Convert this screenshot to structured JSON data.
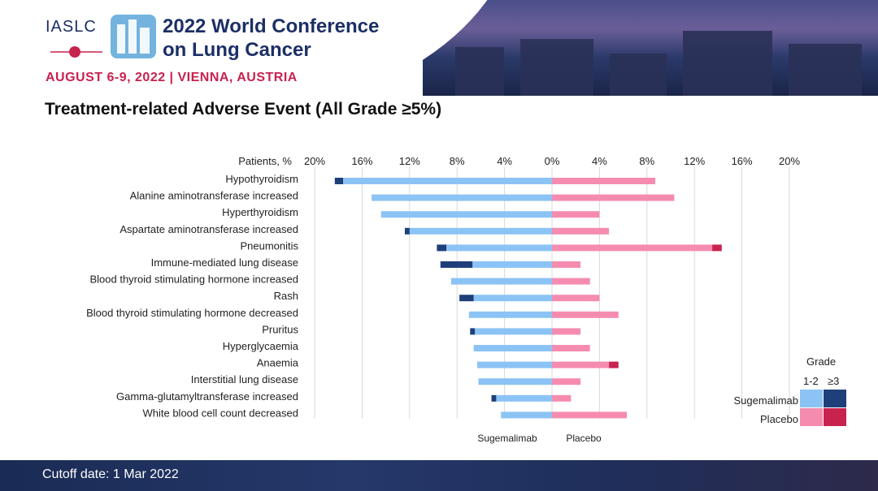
{
  "header": {
    "org": "IASLC",
    "conference_title_line1": "2022 World Conference",
    "conference_title_line2": "on Lung Cancer",
    "date_location": "AUGUST 6-9, 2022 | VIENNA, AUSTRIA"
  },
  "slide_title": "Treatment-related Adverse Event (All Grade ≥5%)",
  "footer": {
    "cutoff": "Cutoff date: 1 Mar 2022"
  },
  "legend": {
    "title": "Grade",
    "col1": "1-2",
    "col2": "≥3",
    "row1": "Sugemalimab",
    "row2": "Placebo"
  },
  "colors": {
    "sugemalimab_g12": "#8cc3f5",
    "sugemalimab_g3": "#1f3f7a",
    "placebo_g12": "#f58caf",
    "placebo_g3": "#c8224e",
    "title_navy": "#1c2f66",
    "accent_red": "#c8224e"
  },
  "chart_data": {
    "type": "bar",
    "orientation": "horizontal-butterfly",
    "ylabel": "Patients, %",
    "xlabel_left": "Sugemalimab",
    "xlabel_right": "Placebo",
    "xlim": [
      -20,
      20
    ],
    "ticks": [
      -20,
      -16,
      -12,
      -8,
      -4,
      0,
      4,
      8,
      12,
      16,
      20
    ],
    "tick_labels": [
      "20%",
      "16%",
      "12%",
      "8%",
      "4%",
      "0%",
      "4%",
      "8%",
      "12%",
      "16%",
      "20%"
    ],
    "grid": true,
    "legend_position": "bottom-right",
    "categories": [
      "Hypothyroidism",
      "Alanine aminotransferase increased",
      "Hyperthyroidism",
      "Aspartate aminotransferase increased",
      "Pneumonitis",
      "Immune-mediated lung disease",
      "Blood thyroid stimulating hormone increased",
      "Rash",
      "Blood thyroid stimulating hormone decreased",
      "Pruritus",
      "Hyperglycaemia",
      "Anaemia",
      "Interstitial lung disease",
      "Gamma-glutamyltransferase increased",
      "White blood cell count decreased"
    ],
    "series": [
      {
        "name": "Sugemalimab",
        "grade": "1-2",
        "values": [
          17.6,
          15.2,
          14.4,
          12.0,
          8.9,
          6.7,
          8.5,
          6.6,
          7.0,
          6.5,
          6.6,
          6.3,
          6.2,
          4.7,
          4.3
        ]
      },
      {
        "name": "Sugemalimab",
        "grade": "≥3",
        "values": [
          0.7,
          0,
          0,
          0.4,
          0.8,
          2.7,
          0,
          1.2,
          0,
          0.4,
          0,
          0,
          0,
          0.4,
          0
        ]
      },
      {
        "name": "Placebo",
        "grade": "1-2",
        "values": [
          8.7,
          10.3,
          4.0,
          4.8,
          13.5,
          2.4,
          3.2,
          4.0,
          5.6,
          2.4,
          3.2,
          4.8,
          2.4,
          1.6,
          6.3
        ]
      },
      {
        "name": "Placebo",
        "grade": "≥3",
        "values": [
          0,
          0,
          0,
          0,
          0.8,
          0,
          0,
          0,
          0,
          0,
          0,
          0.8,
          0,
          0,
          0
        ]
      }
    ]
  }
}
